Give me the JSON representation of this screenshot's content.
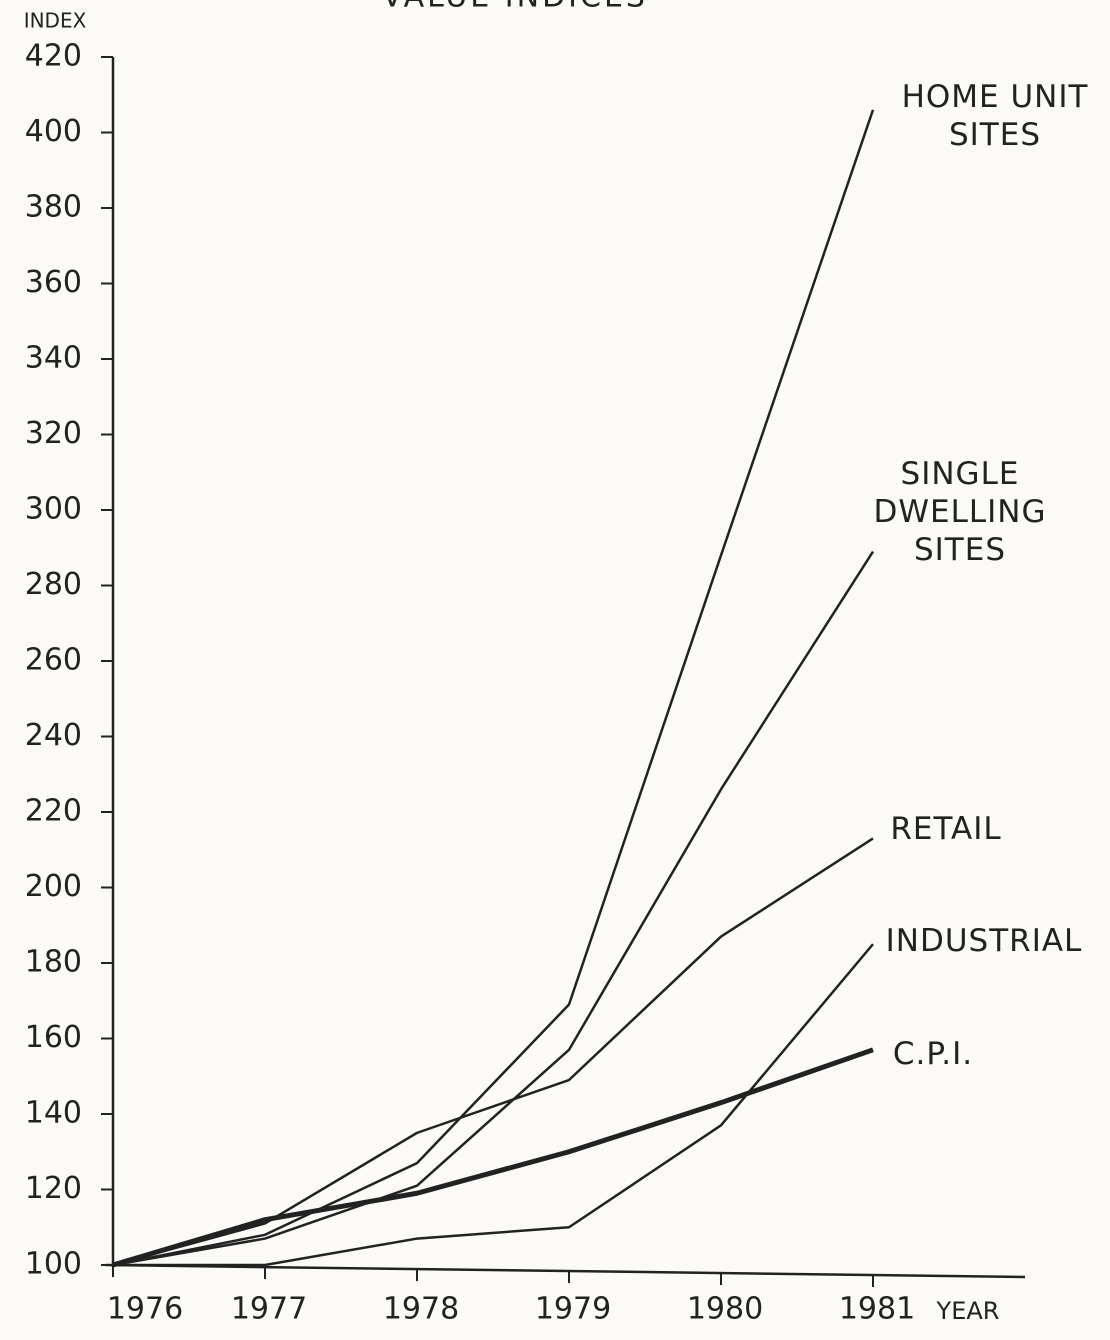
{
  "chart_data": {
    "type": "line",
    "title": "VALUE INDICES",
    "y_label": "INDEX",
    "x_label": "YEAR",
    "x": [
      1976,
      1977,
      1978,
      1979,
      1980,
      1981
    ],
    "xlim": [
      1975.95,
      1982
    ],
    "xticks": [
      1976,
      1977,
      1978,
      1979,
      1980,
      1981
    ],
    "ylim": [
      100,
      420
    ],
    "yticks": [
      100,
      120,
      140,
      160,
      180,
      200,
      220,
      240,
      260,
      280,
      300,
      320,
      340,
      360,
      380,
      400,
      420
    ],
    "grid": false,
    "series": [
      {
        "name": "HOME UNIT SITES",
        "color": "#222222",
        "line_width": 2.5,
        "values": [
          100,
          108,
          127,
          169,
          288,
          406
        ]
      },
      {
        "name": "SINGLE DWELLING SITES",
        "color": "#222222",
        "line_width": 2.5,
        "values": [
          100,
          107,
          121,
          157,
          226,
          289
        ]
      },
      {
        "name": "RETAIL",
        "color": "#222222",
        "line_width": 2.5,
        "values": [
          100,
          111,
          135,
          149,
          187,
          213
        ]
      },
      {
        "name": "INDUSTRIAL",
        "color": "#222222",
        "line_width": 2.5,
        "values": [
          100,
          100,
          107,
          110,
          137,
          185
        ]
      },
      {
        "name": "C.P.I.",
        "color": "#222222",
        "line_width": 5,
        "values": [
          100,
          112,
          119,
          130,
          143,
          157
        ]
      }
    ]
  }
}
